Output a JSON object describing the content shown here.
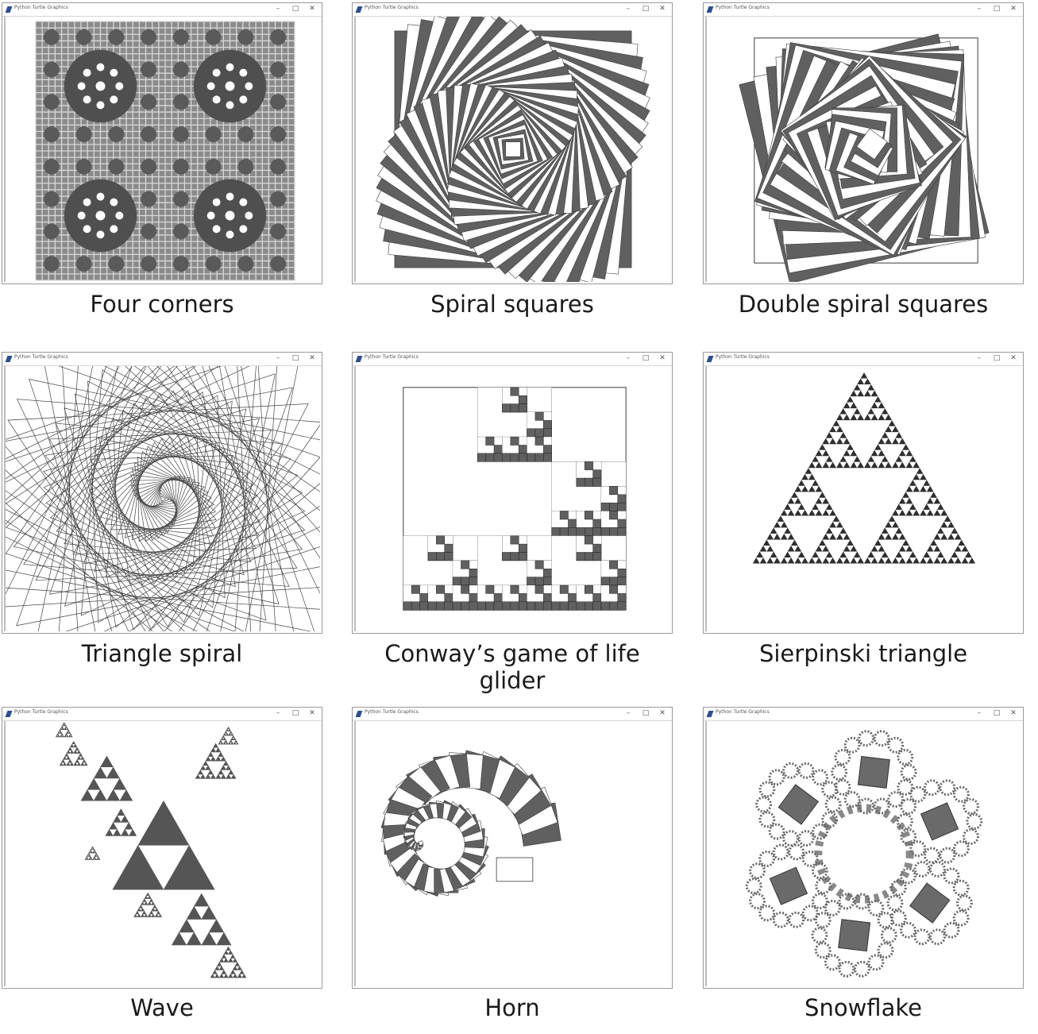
{
  "window_title": "Python Turtle Graphics",
  "window_controls": {
    "minimize": "–",
    "maximize": "□",
    "close": "✕"
  },
  "colors": {
    "fill": "#606060",
    "stroke": "#3c3c3c",
    "background": "#ffffff"
  },
  "panels": [
    {
      "caption": "Four corners"
    },
    {
      "caption": "Spiral squares"
    },
    {
      "caption": "Double spiral squares"
    },
    {
      "caption": "Triangle spiral"
    },
    {
      "caption": "Conway’s game of life glider"
    },
    {
      "caption": "Sierpinski triangle"
    },
    {
      "caption": "Wave"
    },
    {
      "caption": "Horn"
    },
    {
      "caption": "Snowflake"
    }
  ]
}
